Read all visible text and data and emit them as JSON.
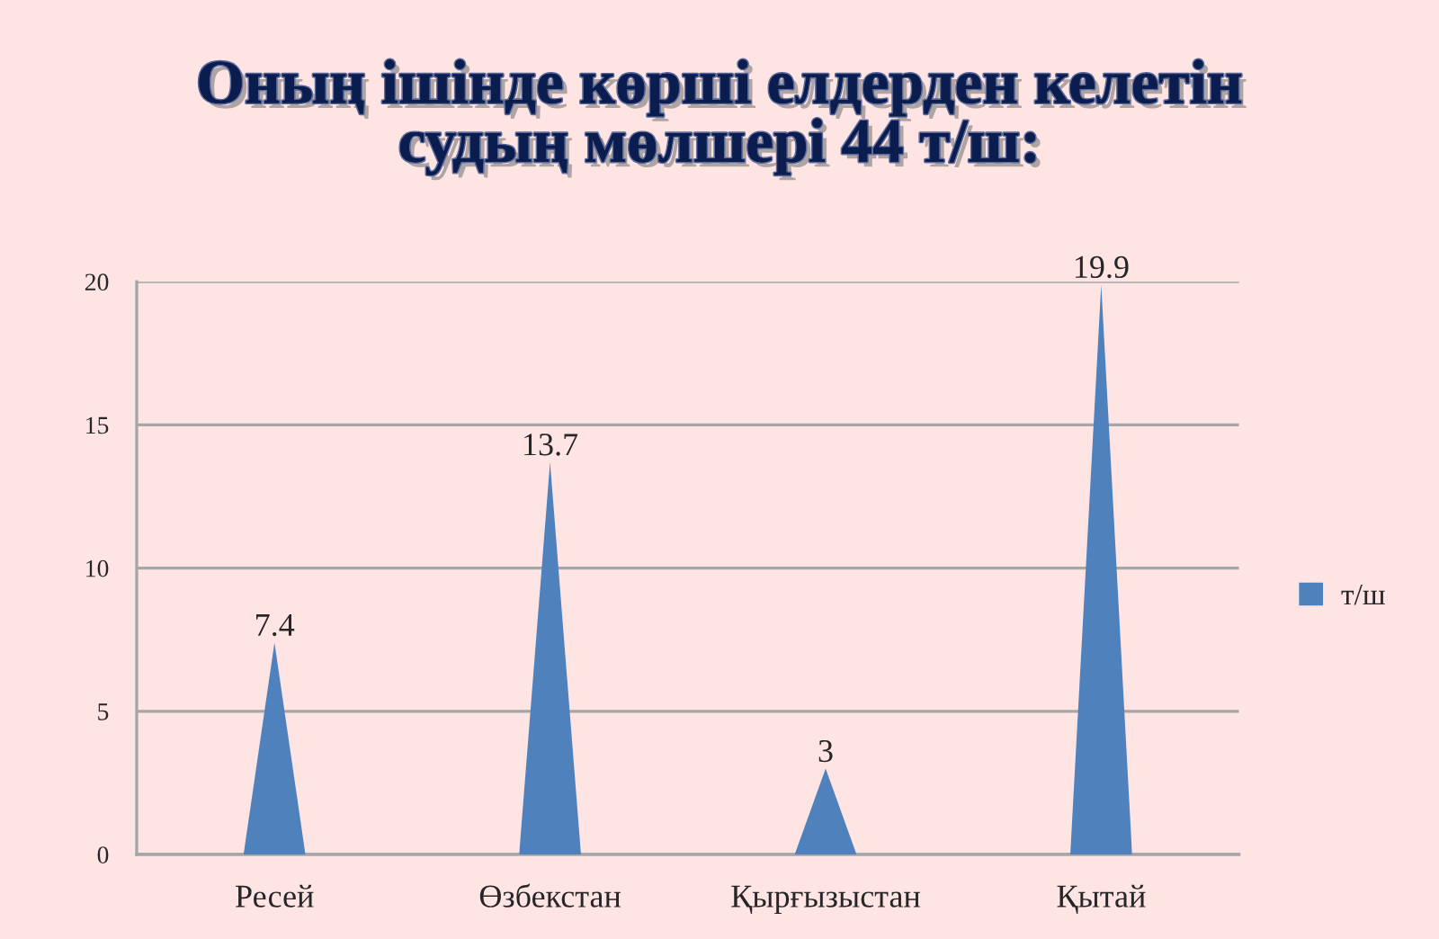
{
  "chart_data": {
    "type": "bar",
    "title": "Оның ішінде көрші елдерден келетін\nсудың мөлшері 44 т/ш:",
    "categories": [
      "Ресей",
      "Өзбекстан",
      "Қырғызыстан",
      "Қытай"
    ],
    "series": [
      {
        "name": "т/ш",
        "color": "#4f81bd",
        "values": [
          7.4,
          13.7,
          3,
          19.9
        ]
      }
    ],
    "ylim": [
      0,
      20
    ],
    "yticks": [
      0,
      5,
      10,
      15,
      20
    ],
    "grid": "y",
    "legend": "right",
    "data_labels": true
  }
}
